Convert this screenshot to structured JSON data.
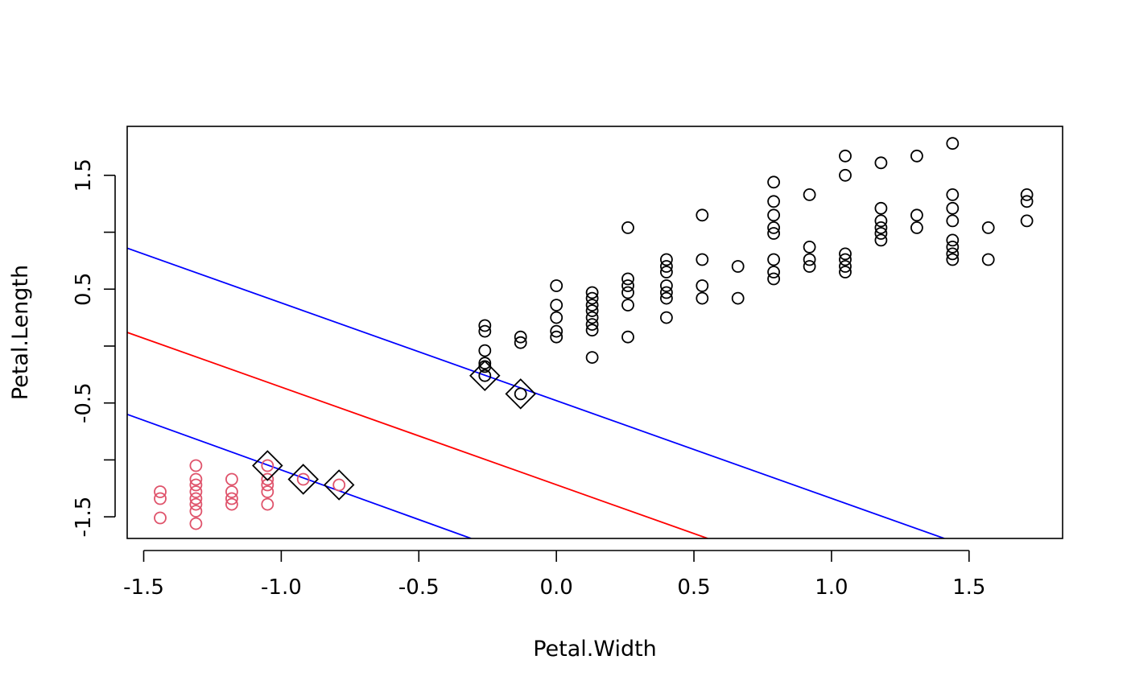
{
  "chart_data": {
    "type": "scatter",
    "title": "",
    "xlabel": "Petal.Width",
    "ylabel": "Petal.Length",
    "xlim": [
      -1.56,
      1.84
    ],
    "ylim": [
      -1.69,
      1.93
    ],
    "x_ticks": [
      -1.5,
      -1.0,
      -0.5,
      0.0,
      0.5,
      1.0,
      1.5
    ],
    "x_tick_labels": [
      "-1.5",
      "-1.0",
      "-0.5",
      "0.0",
      "0.5",
      "1.0",
      "1.5"
    ],
    "y_ticks": [
      -1.5,
      -1.0,
      -0.5,
      0.0,
      0.5,
      1.0,
      1.5
    ],
    "y_tick_labels": [
      "-1.5",
      "",
      "-0.5",
      "",
      "0.5",
      "",
      "1.5"
    ],
    "grid": false,
    "series": [
      {
        "color": "#000000",
        "marker": "circle",
        "points": [
          [
            -0.26,
            0.18
          ],
          [
            -0.26,
            0.13
          ],
          [
            -0.26,
            -0.04
          ],
          [
            -0.26,
            -0.15
          ],
          [
            -0.26,
            -0.18
          ],
          [
            -0.26,
            -0.26
          ],
          [
            -0.13,
            0.08
          ],
          [
            -0.13,
            0.03
          ],
          [
            -0.13,
            -0.42
          ],
          [
            0.0,
            0.53
          ],
          [
            0.0,
            0.36
          ],
          [
            0.0,
            0.25
          ],
          [
            0.0,
            0.13
          ],
          [
            0.0,
            0.08
          ],
          [
            0.13,
            0.47
          ],
          [
            0.13,
            0.42
          ],
          [
            0.13,
            0.36
          ],
          [
            0.13,
            0.31
          ],
          [
            0.13,
            0.25
          ],
          [
            0.13,
            0.19
          ],
          [
            0.13,
            0.14
          ],
          [
            0.13,
            -0.1
          ],
          [
            0.26,
            1.04
          ],
          [
            0.26,
            0.59
          ],
          [
            0.26,
            0.53
          ],
          [
            0.26,
            0.47
          ],
          [
            0.26,
            0.36
          ],
          [
            0.26,
            0.08
          ],
          [
            0.4,
            0.76
          ],
          [
            0.4,
            0.7
          ],
          [
            0.4,
            0.65
          ],
          [
            0.4,
            0.53
          ],
          [
            0.4,
            0.47
          ],
          [
            0.4,
            0.42
          ],
          [
            0.4,
            0.25
          ],
          [
            0.53,
            1.15
          ],
          [
            0.53,
            0.76
          ],
          [
            0.53,
            0.53
          ],
          [
            0.53,
            0.42
          ],
          [
            0.66,
            0.7
          ],
          [
            0.66,
            0.42
          ],
          [
            0.79,
            1.44
          ],
          [
            0.79,
            1.27
          ],
          [
            0.79,
            1.15
          ],
          [
            0.79,
            1.04
          ],
          [
            0.79,
            0.99
          ],
          [
            0.79,
            0.76
          ],
          [
            0.79,
            0.65
          ],
          [
            0.79,
            0.59
          ],
          [
            0.92,
            1.33
          ],
          [
            0.92,
            0.87
          ],
          [
            0.92,
            0.76
          ],
          [
            0.92,
            0.7
          ],
          [
            1.05,
            1.67
          ],
          [
            1.05,
            1.5
          ],
          [
            1.05,
            0.81
          ],
          [
            1.05,
            0.76
          ],
          [
            1.05,
            0.7
          ],
          [
            1.05,
            0.65
          ],
          [
            1.18,
            1.61
          ],
          [
            1.18,
            1.21
          ],
          [
            1.18,
            1.1
          ],
          [
            1.18,
            1.04
          ],
          [
            1.18,
            0.99
          ],
          [
            1.18,
            0.93
          ],
          [
            1.31,
            1.67
          ],
          [
            1.31,
            1.15
          ],
          [
            1.31,
            1.04
          ],
          [
            1.44,
            1.78
          ],
          [
            1.44,
            1.33
          ],
          [
            1.44,
            1.21
          ],
          [
            1.44,
            1.1
          ],
          [
            1.44,
            0.93
          ],
          [
            1.44,
            0.87
          ],
          [
            1.44,
            0.81
          ],
          [
            1.44,
            0.76
          ],
          [
            1.57,
            1.04
          ],
          [
            1.57,
            0.76
          ],
          [
            1.71,
            1.33
          ],
          [
            1.71,
            1.27
          ],
          [
            1.71,
            1.1
          ]
        ]
      },
      {
        "color": "#df536b",
        "marker": "circle",
        "points": [
          [
            -1.44,
            -1.28
          ],
          [
            -1.44,
            -1.34
          ],
          [
            -1.44,
            -1.51
          ],
          [
            -1.31,
            -1.05
          ],
          [
            -1.31,
            -1.17
          ],
          [
            -1.31,
            -1.22
          ],
          [
            -1.31,
            -1.28
          ],
          [
            -1.31,
            -1.34
          ],
          [
            -1.31,
            -1.39
          ],
          [
            -1.31,
            -1.45
          ],
          [
            -1.31,
            -1.56
          ],
          [
            -1.18,
            -1.17
          ],
          [
            -1.18,
            -1.28
          ],
          [
            -1.18,
            -1.34
          ],
          [
            -1.18,
            -1.39
          ],
          [
            -1.05,
            -1.05
          ],
          [
            -1.05,
            -1.17
          ],
          [
            -1.05,
            -1.22
          ],
          [
            -1.05,
            -1.28
          ],
          [
            -1.05,
            -1.39
          ],
          [
            -0.92,
            -1.17
          ],
          [
            -0.79,
            -1.22
          ]
        ]
      }
    ],
    "support_vectors": [
      [
        -0.26,
        -0.26
      ],
      [
        -0.13,
        -0.42
      ],
      [
        -1.05,
        -1.05
      ],
      [
        -0.92,
        -1.17
      ],
      [
        -0.79,
        -1.22
      ]
    ],
    "lines": [
      {
        "color": "#ff0000",
        "role": "decision boundary",
        "points": [
          [
            -1.56,
            0.12
          ],
          [
            0.55,
            -1.69
          ]
        ]
      },
      {
        "color": "#0000ff",
        "role": "margin",
        "points": [
          [
            -1.56,
            0.86
          ],
          [
            1.41,
            -1.69
          ]
        ]
      },
      {
        "color": "#0000ff",
        "role": "margin",
        "points": [
          [
            -1.56,
            -0.6
          ],
          [
            -0.31,
            -1.69
          ]
        ]
      }
    ]
  }
}
